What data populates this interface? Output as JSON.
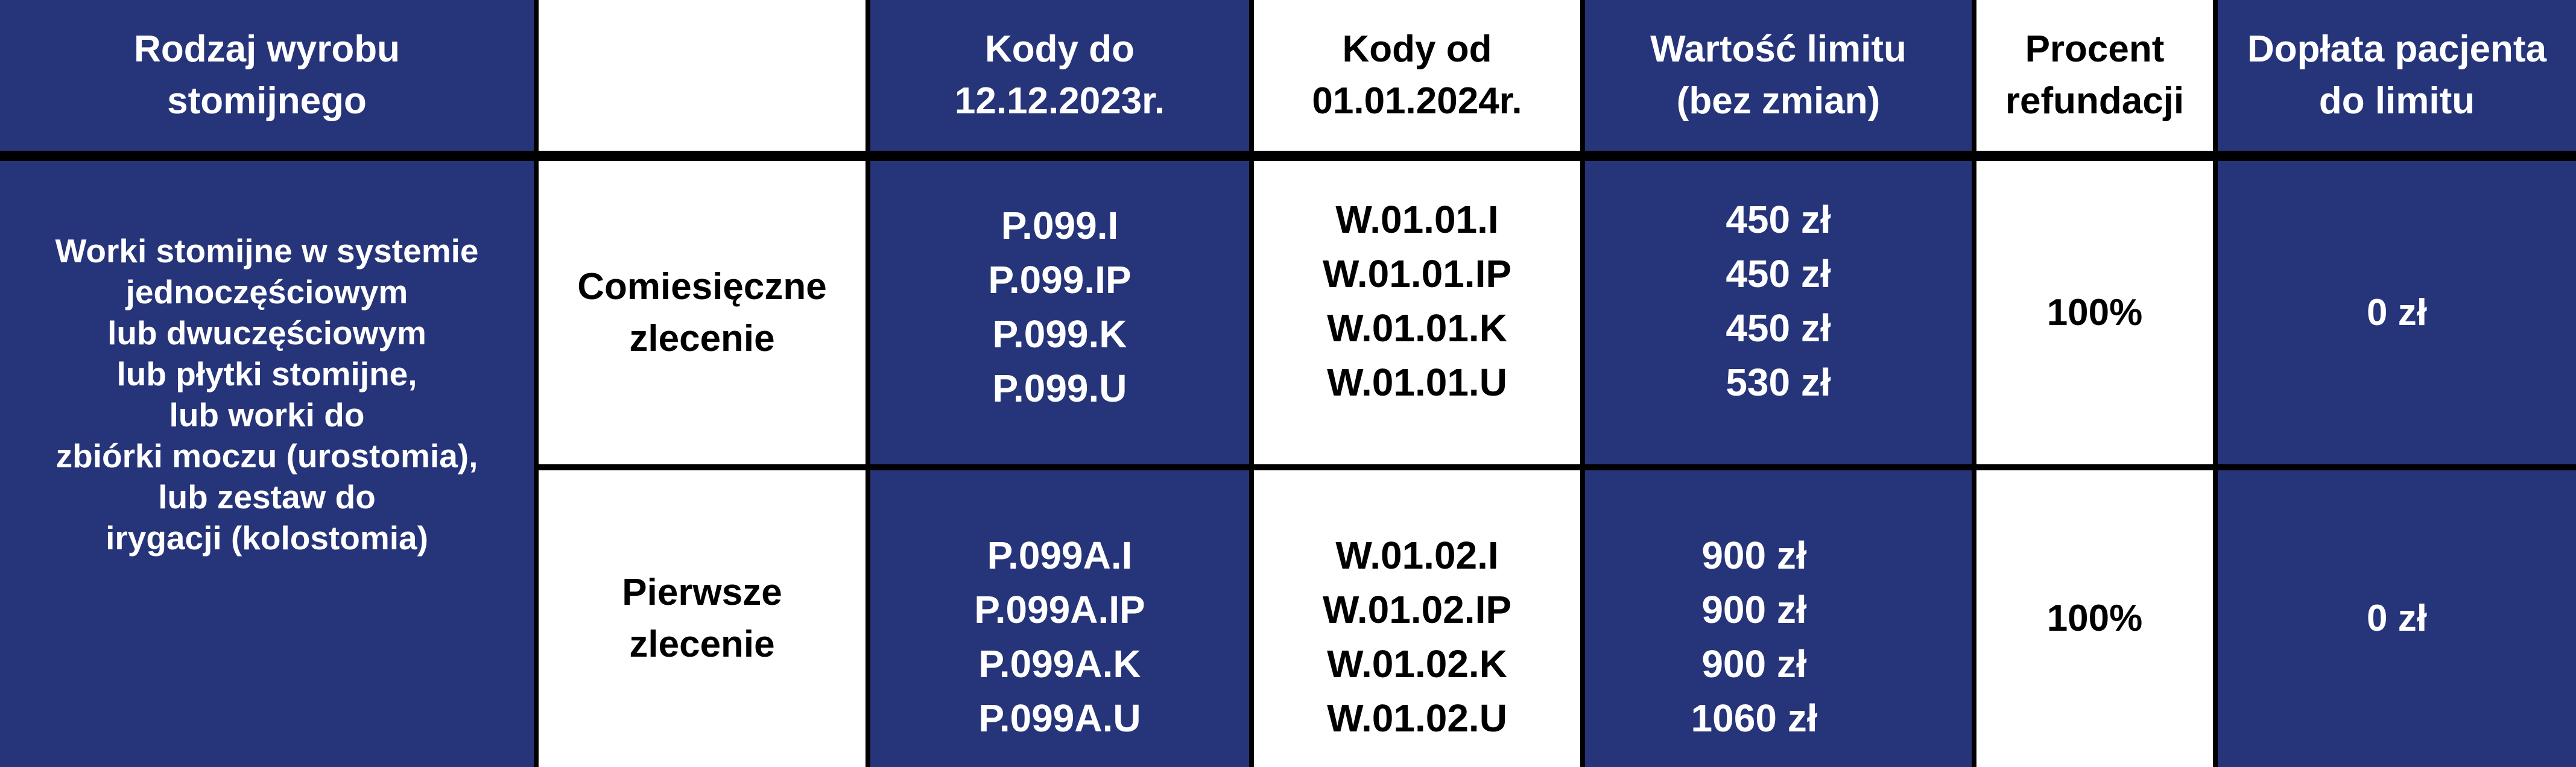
{
  "colors": {
    "blue": "#26347a",
    "white": "#ffffff",
    "border": "#000000"
  },
  "header": {
    "product_type": [
      "Rodzaj wyrobu",
      "stomijnego"
    ],
    "empty": "",
    "codes_until": [
      "Kody do",
      "12.12.2023r."
    ],
    "codes_from": [
      "Kody od",
      "01.01.2024r."
    ],
    "limit_value": [
      "Wartość limitu",
      "(bez zmian)"
    ],
    "refund_percent": [
      "Procent",
      "refundacji"
    ],
    "patient_copay": [
      "Dopłata pacjenta",
      "do limitu"
    ]
  },
  "product_description": [
    "Worki stomijne w systemie",
    "jednoczęściowym",
    "lub dwuczęściowym",
    "lub płytki stomijne,",
    "lub worki do",
    "zbiórki moczu (urostomia),",
    "lub zestaw do",
    "irygacji (kolostomia)"
  ],
  "rows": [
    {
      "order_type": [
        "Comiesięczne",
        "zlecenie"
      ],
      "codes_until": [
        "P.099.I",
        "P.099.IP",
        "P.099.K",
        "P.099.U"
      ],
      "codes_from": [
        "W.01.01.I",
        "W.01.01.IP",
        "W.01.01.K",
        "W.01.01.U"
      ],
      "limits": [
        "450 zł",
        "450 zł",
        "450 zł",
        "530 zł"
      ],
      "refund": "100%",
      "copay": "0 zł"
    },
    {
      "order_type": [
        "Pierwsze",
        "zlecenie"
      ],
      "codes_until": [
        "P.099A.I",
        "P.099A.IP",
        "P.099A.K",
        "P.099A.U"
      ],
      "codes_from": [
        "W.01.02.I",
        "W.01.02.IP",
        "W.01.02.K",
        "W.01.02.U"
      ],
      "limits": [
        "900 zł",
        "900 zł",
        "900 zł",
        "1060 zł"
      ],
      "refund": "100%",
      "copay": "0 zł"
    }
  ]
}
